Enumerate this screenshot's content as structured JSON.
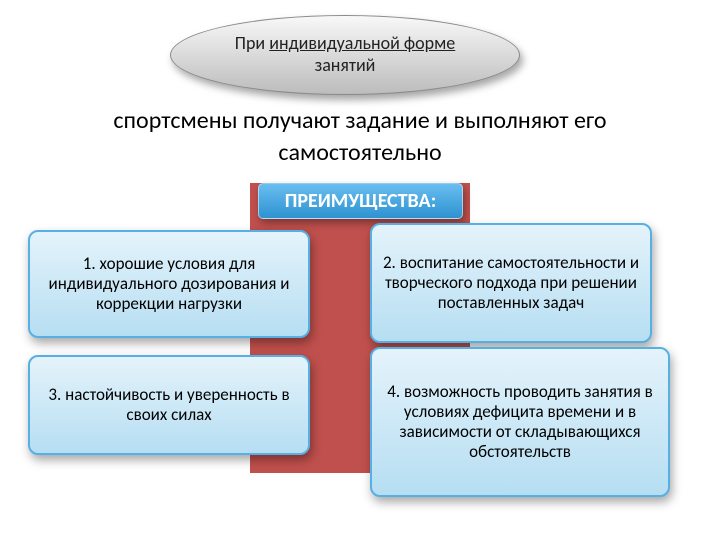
{
  "colors": {
    "ellipse_grad_top": "#f8f8f8",
    "ellipse_grad_bot": "#bcbcbc",
    "red_block": "#c0504d",
    "label_grad_top": "#6abef1",
    "label_grad_mid": "#4ba8e0",
    "label_grad_bot": "#2f93d0",
    "card_grad_top": "#e4f3fb",
    "card_grad_bot": "#b6def2",
    "card_border": "#57b0e3"
  },
  "ellipse": {
    "prefix": "При ",
    "underlined": "индивидуальной форме",
    "suffix": " занятий"
  },
  "description": "спортсмены получают задание и выполняют его самостоятельно",
  "advantages_label": "ПРЕИМУЩЕСТВА:",
  "cards": {
    "c1": "1. хорошие условия для индивидуального дозирования и коррекции нагрузки",
    "c2": "2. воспитание самостоятельности и творческого подхода при решении поставленных задач",
    "c3": "3. настойчивость и уверенность в своих силах",
    "c4": "4. возможность проводить занятия в условиях дефицита времени и в зависимости от складывающихся обстоятельств"
  }
}
